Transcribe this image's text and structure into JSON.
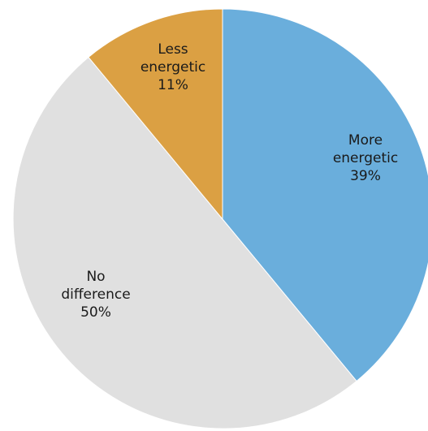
{
  "chart_data": {
    "type": "pie",
    "title": "",
    "legend": "none",
    "slices": [
      {
        "label_lines": [
          "More",
          "energetic"
        ],
        "percent_label": "39%",
        "value": 39,
        "color": "#6aaedc"
      },
      {
        "label_lines": [
          "No",
          "difference"
        ],
        "percent_label": "50%",
        "value": 50,
        "color": "#e0e0e0"
      },
      {
        "label_lines": [
          "Less",
          "energetic"
        ],
        "percent_label": "11%",
        "value": 11,
        "color": "#dba043"
      }
    ]
  }
}
